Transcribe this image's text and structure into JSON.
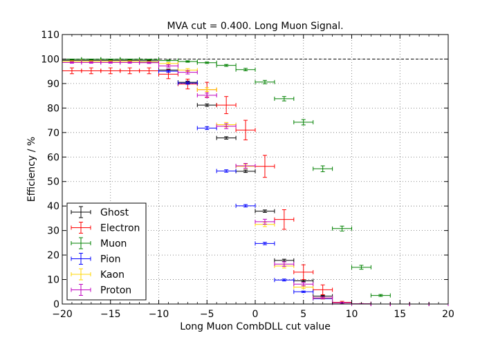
{
  "chart_data": {
    "type": "scatter",
    "title": "MVA cut = 0.400. Long Muon Signal.",
    "xlabel": "Long Muon CombDLL cut value",
    "ylabel": "Efficiency / %",
    "xlim": [
      -20,
      20
    ],
    "ylim": [
      0,
      110
    ],
    "xticks": [
      -20,
      -15,
      -10,
      -5,
      0,
      5,
      10,
      15,
      20
    ],
    "yticks": [
      0,
      10,
      20,
      30,
      40,
      50,
      60,
      70,
      80,
      90,
      100,
      110
    ],
    "grid": true,
    "legend_position": "lower-left",
    "reference_line": 100,
    "bin_halfwidth": 1,
    "series": [
      {
        "name": "Ghost",
        "color": "#000000",
        "x": [
          -19,
          -17,
          -15,
          -13,
          -11,
          -9,
          -7,
          -5,
          -3,
          -1,
          1,
          3,
          5,
          7,
          9,
          11,
          13,
          15,
          17,
          19
        ],
        "y": [
          99.5,
          99.5,
          99.5,
          99.5,
          99.3,
          95.5,
          90.5,
          81.2,
          67.8,
          54.2,
          37.9,
          17.8,
          9.5,
          3.2,
          0.6,
          0.1,
          0,
          0,
          0,
          0
        ],
        "yerr": [
          0.2,
          0.2,
          0.2,
          0.2,
          0.2,
          0.4,
          0.5,
          0.5,
          0.5,
          0.5,
          0.5,
          0.5,
          0.4,
          0.3,
          0.1,
          0.05,
          0,
          0,
          0,
          0
        ]
      },
      {
        "name": "Electron",
        "color": "#ff0000",
        "x": [
          -19,
          -17,
          -15,
          -13,
          -11,
          -9,
          -7,
          -5,
          -3,
          -1,
          1,
          3,
          5,
          7,
          9,
          11,
          13,
          15,
          17,
          19
        ],
        "y": [
          95.2,
          95.2,
          95.2,
          95.2,
          95.2,
          93.8,
          89.8,
          87.5,
          81.2,
          71.0,
          56.2,
          34.5,
          13.0,
          5.8,
          0.7,
          0.1,
          0,
          0,
          0,
          0
        ],
        "yerr": [
          1.2,
          1.2,
          1.2,
          1.2,
          1.2,
          1.8,
          2.0,
          3.0,
          3.5,
          4.0,
          4.5,
          4.0,
          3.0,
          2.0,
          0.4,
          0.1,
          0,
          0,
          0,
          0
        ]
      },
      {
        "name": "Muon",
        "color": "#008000",
        "x": [
          -19,
          -17,
          -15,
          -13,
          -11,
          -9,
          -7,
          -5,
          -3,
          -1,
          1,
          3,
          5,
          7,
          9,
          11,
          13,
          15,
          17,
          19
        ],
        "y": [
          99.9,
          99.9,
          99.9,
          99.9,
          99.8,
          99.4,
          99.0,
          98.5,
          97.4,
          95.7,
          90.6,
          83.8,
          74.2,
          55.2,
          30.8,
          15.0,
          3.5,
          0,
          0,
          0
        ],
        "yerr": [
          0.1,
          0.1,
          0.1,
          0.1,
          0.1,
          0.2,
          0.3,
          0.3,
          0.4,
          0.5,
          0.7,
          0.9,
          1.1,
          1.2,
          1.0,
          0.8,
          0.4,
          0,
          0,
          0
        ]
      },
      {
        "name": "Pion",
        "color": "#0000ff",
        "x": [
          -19,
          -17,
          -15,
          -13,
          -11,
          -9,
          -7,
          -5,
          -3,
          -1,
          1,
          3,
          5,
          7,
          9,
          11,
          13,
          15,
          17,
          19
        ],
        "y": [
          99.0,
          99.0,
          99.0,
          99.0,
          98.6,
          95.0,
          90.2,
          71.8,
          54.3,
          40.1,
          24.7,
          9.8,
          5.0,
          2.2,
          0.5,
          0.1,
          0,
          0,
          0,
          0
        ],
        "yerr": [
          0.2,
          0.2,
          0.2,
          0.2,
          0.3,
          0.4,
          0.5,
          0.6,
          0.5,
          0.5,
          0.5,
          0.4,
          0.3,
          0.2,
          0.1,
          0.05,
          0,
          0,
          0,
          0
        ]
      },
      {
        "name": "Kaon",
        "color": "#ffd700",
        "x": [
          -19,
          -17,
          -15,
          -13,
          -11,
          -9,
          -7,
          -5,
          -3,
          -1,
          1,
          3,
          5,
          7,
          9,
          11,
          13,
          15,
          17,
          19
        ],
        "y": [
          99.0,
          99.0,
          99.0,
          99.0,
          98.8,
          98.2,
          95.5,
          87.5,
          73.2,
          56.2,
          32.5,
          15.5,
          6.9,
          2.4,
          0.5,
          0.1,
          0,
          0,
          0,
          0
        ],
        "yerr": [
          0.3,
          0.3,
          0.3,
          0.3,
          0.3,
          0.4,
          0.6,
          0.8,
          0.9,
          0.9,
          0.9,
          0.8,
          0.6,
          0.4,
          0.2,
          0.05,
          0,
          0,
          0,
          0
        ]
      },
      {
        "name": "Proton",
        "color": "#bf00bf",
        "x": [
          -19,
          -17,
          -15,
          -13,
          -11,
          -9,
          -7,
          -5,
          -3,
          -1,
          1,
          3,
          5,
          7,
          9,
          11,
          13,
          15,
          17,
          19
        ],
        "y": [
          98.6,
          98.6,
          98.6,
          98.6,
          98.5,
          97.2,
          94.6,
          85.2,
          72.6,
          56.4,
          33.6,
          16.3,
          8.1,
          2.5,
          0.5,
          0.1,
          0,
          0,
          0,
          0
        ],
        "yerr": [
          0.3,
          0.3,
          0.3,
          0.3,
          0.3,
          0.5,
          0.7,
          0.9,
          1.0,
          1.0,
          1.0,
          0.9,
          0.7,
          0.4,
          0.2,
          0.05,
          0,
          0,
          0,
          0
        ]
      }
    ]
  }
}
